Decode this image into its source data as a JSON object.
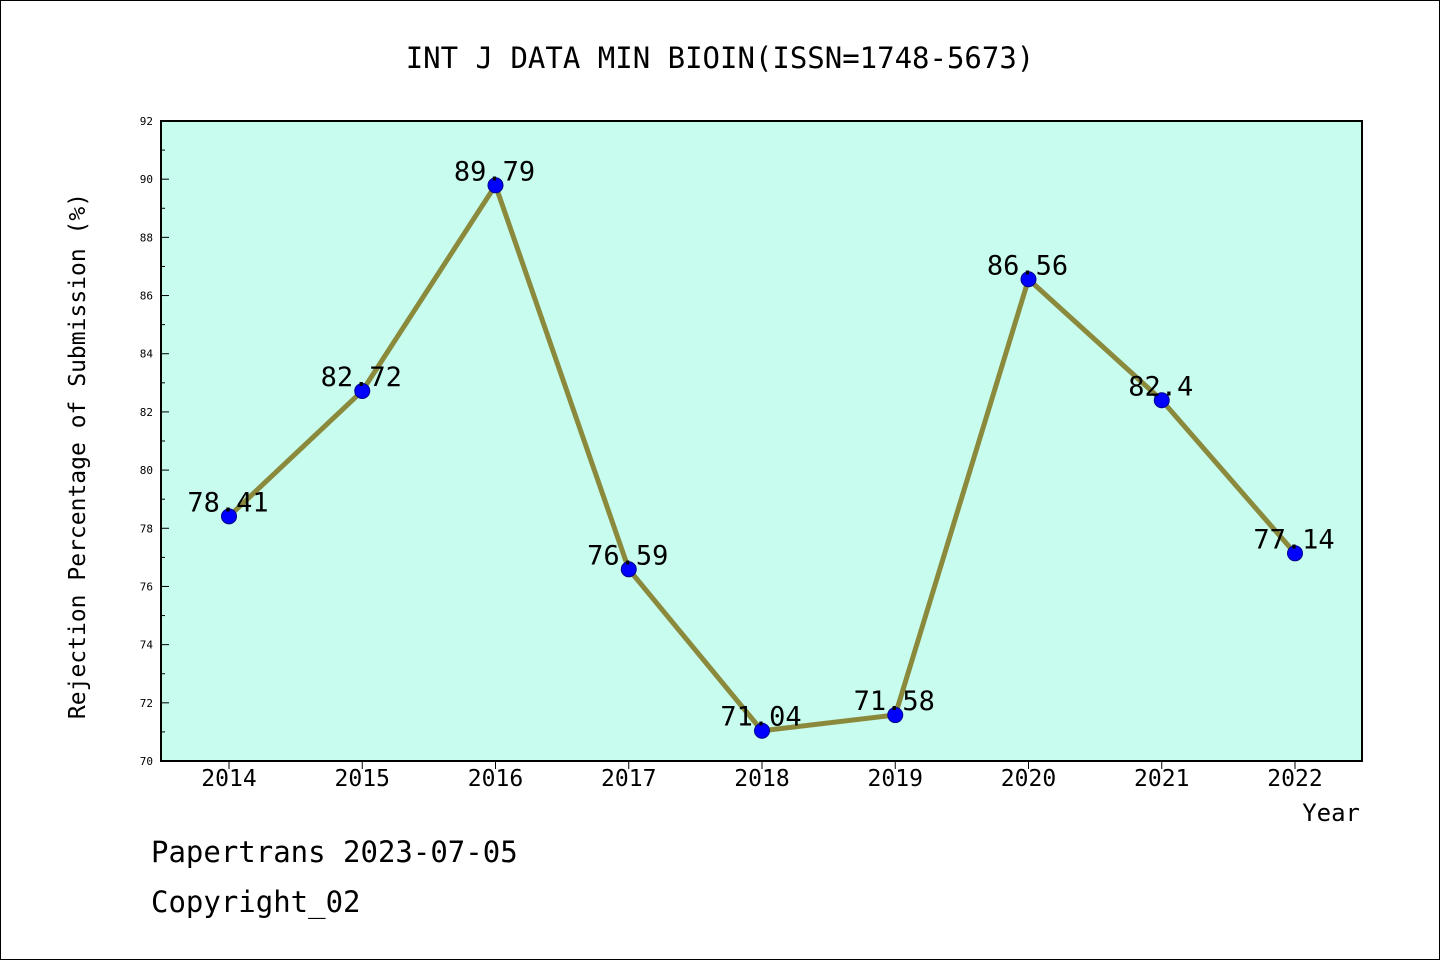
{
  "chart_data": {
    "type": "line",
    "title": "INT J DATA MIN BIOIN(ISSN=1748-5673)",
    "xlabel": "Year",
    "ylabel": "Rejection Percentage of Submission (%)",
    "categories": [
      "2014",
      "2015",
      "2016",
      "2017",
      "2018",
      "2019",
      "2020",
      "2021",
      "2022"
    ],
    "series": [
      {
        "values": [
          78.41,
          82.72,
          89.79,
          76.59,
          71.04,
          71.58,
          86.56,
          82.4,
          77.14
        ]
      }
    ],
    "data_labels": [
      "78.41",
      "82.72",
      "89.79",
      "76.59",
      "71.04",
      "71.58",
      "86.56",
      "82.4",
      "77.14"
    ],
    "ylim": [
      70,
      92
    ],
    "yticks": [
      "70",
      "72",
      "74",
      "76",
      "78",
      "80",
      "82",
      "84",
      "86",
      "88",
      "90",
      "92"
    ],
    "grid": false,
    "colors": {
      "plot_background": "#c7fcee",
      "line": "#8b8a3c",
      "marker": "#0000ff",
      "marker_edge": "#00008b"
    }
  },
  "footer": {
    "line1": "Papertrans 2023-07-05",
    "line2": "Copyright_02"
  }
}
